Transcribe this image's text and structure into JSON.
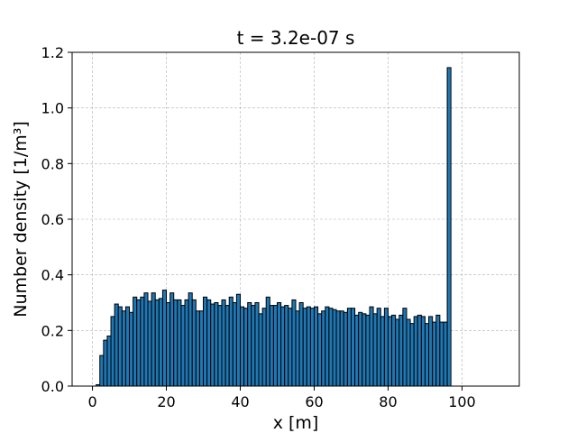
{
  "chart_data": {
    "type": "bar",
    "title": "t = 3.2e-07 s",
    "xlabel": "x [m]",
    "ylabel": "Number density [1/m³]",
    "xlim": [
      -5.5,
      115.5
    ],
    "ylim": [
      0,
      1.2
    ],
    "xticks": [
      0,
      20,
      40,
      60,
      80,
      100
    ],
    "yticks": [
      0.0,
      0.2,
      0.4,
      0.6,
      0.8,
      1.0,
      1.2
    ],
    "ytick_labels": [
      "0.0",
      "0.2",
      "0.4",
      "0.6",
      "0.8",
      "1.0",
      "1.2"
    ],
    "grid": true,
    "bar_color": "#1f77b4",
    "bin_width": 1,
    "bin_start": 0,
    "values": [
      0.0,
      0.005,
      0.11,
      0.165,
      0.18,
      0.25,
      0.295,
      0.285,
      0.27,
      0.285,
      0.265,
      0.32,
      0.31,
      0.32,
      0.335,
      0.305,
      0.335,
      0.31,
      0.315,
      0.345,
      0.3,
      0.335,
      0.31,
      0.31,
      0.29,
      0.31,
      0.335,
      0.31,
      0.27,
      0.27,
      0.32,
      0.31,
      0.295,
      0.3,
      0.29,
      0.31,
      0.29,
      0.32,
      0.3,
      0.33,
      0.285,
      0.28,
      0.3,
      0.29,
      0.3,
      0.26,
      0.28,
      0.32,
      0.29,
      0.29,
      0.3,
      0.285,
      0.29,
      0.28,
      0.31,
      0.27,
      0.3,
      0.28,
      0.285,
      0.28,
      0.285,
      0.26,
      0.27,
      0.285,
      0.28,
      0.275,
      0.27,
      0.27,
      0.265,
      0.28,
      0.28,
      0.255,
      0.265,
      0.26,
      0.255,
      0.285,
      0.26,
      0.28,
      0.25,
      0.28,
      0.25,
      0.255,
      0.24,
      0.255,
      0.28,
      0.24,
      0.225,
      0.25,
      0.255,
      0.25,
      0.225,
      0.25,
      0.23,
      0.255,
      0.23,
      0.23,
      1.145,
      0,
      0,
      0,
      0,
      0,
      0,
      0,
      0,
      0,
      0,
      0,
      0,
      0
    ]
  }
}
